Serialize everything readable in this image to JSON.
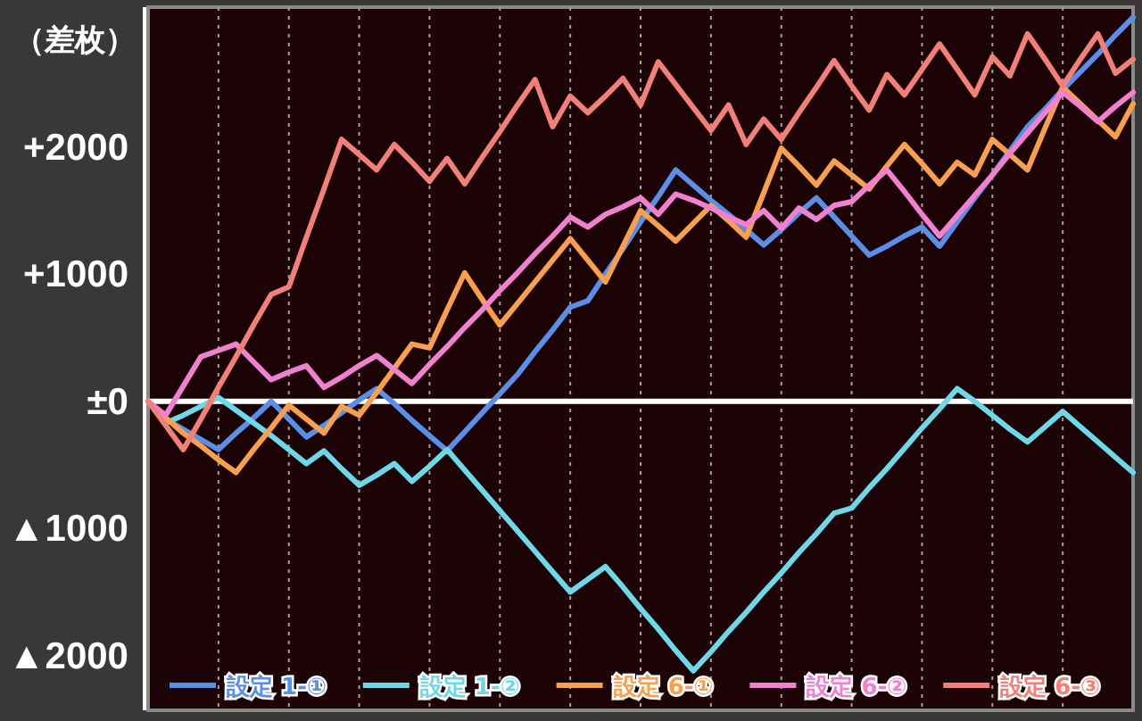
{
  "chart_data": {
    "type": "line",
    "ylabel": "（差枚）",
    "ylim": [
      -2430,
      3100
    ],
    "categories": [
      null,
      null,
      null,
      null,
      null,
      null,
      null,
      null,
      null,
      null,
      null,
      null,
      null,
      null,
      null,
      null,
      null,
      null,
      null,
      null,
      null,
      null,
      null,
      null,
      null,
      null,
      null,
      null,
      null,
      null,
      null,
      null,
      null,
      null,
      null,
      null,
      null,
      null,
      null,
      null,
      null,
      null,
      null,
      null,
      null,
      null,
      null,
      null,
      null,
      null,
      null,
      null,
      null,
      null,
      null,
      null,
      null
    ],
    "yticks": [
      {
        "value": 2000,
        "label": "+2000"
      },
      {
        "value": 1000,
        "label": "+1000"
      },
      {
        "value": 0,
        "label": "±0"
      },
      {
        "value": -1000,
        "label": "▲1000"
      },
      {
        "value": -2000,
        "label": "▲2000"
      }
    ],
    "tick_labels": "y",
    "grid": "x",
    "legend": "bottom",
    "marker": "none",
    "line_style": "solid",
    "ref_lines": [
      {
        "axis": "y",
        "value": 0,
        "color": "#ffffff"
      }
    ],
    "series": [
      {
        "name": "設定 1-①",
        "color": "#5b8ee6",
        "values": [
          0,
          -140,
          -220,
          -300,
          -380,
          -250,
          -130,
          0,
          -140,
          -280,
          -190,
          -90,
          10,
          100,
          -20,
          -150,
          -270,
          -390,
          -240,
          -90,
          60,
          210,
          390,
          560,
          740,
          790,
          1000,
          1200,
          1410,
          1610,
          1820,
          1700,
          1580,
          1470,
          1350,
          1230,
          1350,
          1480,
          1600,
          1450,
          1300,
          1150,
          1220,
          1300,
          1370,
          1220,
          1410,
          1600,
          1780,
          1970,
          2160,
          2300,
          2450,
          2590,
          2730,
          2880,
          3020
        ]
      },
      {
        "name": "設定 1-②",
        "color": "#6fd8e8",
        "values": [
          0,
          -170,
          -110,
          -40,
          30,
          -70,
          -170,
          -270,
          -380,
          -490,
          -390,
          -530,
          -660,
          -580,
          -490,
          -630,
          -510,
          -380,
          -540,
          -700,
          -860,
          -1020,
          -1180,
          -1340,
          -1500,
          -1400,
          -1300,
          -1460,
          -1630,
          -1790,
          -1960,
          -2120,
          -1970,
          -1810,
          -1660,
          -1500,
          -1350,
          -1190,
          -1040,
          -880,
          -840,
          -680,
          -530,
          -370,
          -210,
          -60,
          100,
          0,
          -110,
          -220,
          -320,
          -200,
          -80,
          -200,
          -320,
          -440,
          -560
        ]
      },
      {
        "name": "設定 6-①",
        "color": "#f8a050",
        "values": [
          0,
          -130,
          -250,
          -350,
          -460,
          -560,
          -380,
          -210,
          -30,
          -140,
          -250,
          -40,
          -110,
          70,
          260,
          450,
          420,
          720,
          1010,
          800,
          600,
          770,
          940,
          1110,
          1280,
          1110,
          940,
          1220,
          1500,
          1380,
          1260,
          1400,
          1540,
          1420,
          1290,
          1640,
          1990,
          1850,
          1700,
          1890,
          1780,
          1670,
          1850,
          2020,
          1870,
          1710,
          1880,
          1780,
          2060,
          1940,
          1820,
          2150,
          2470,
          2340,
          2210,
          2080,
          2340
        ]
      },
      {
        "name": "設定 6-②",
        "color": "#f080d0",
        "values": [
          0,
          -110,
          120,
          350,
          400,
          450,
          310,
          170,
          230,
          280,
          110,
          190,
          280,
          360,
          250,
          140,
          290,
          430,
          580,
          720,
          870,
          1010,
          1160,
          1300,
          1450,
          1370,
          1470,
          1530,
          1600,
          1470,
          1630,
          1580,
          1520,
          1450,
          1390,
          1500,
          1360,
          1520,
          1430,
          1540,
          1570,
          1700,
          1820,
          1650,
          1470,
          1300,
          1460,
          1620,
          1780,
          1950,
          2110,
          2270,
          2430,
          2320,
          2200,
          2320,
          2430
        ]
      },
      {
        "name": "設定 6-③",
        "color": "#f08078",
        "values": [
          0,
          -190,
          -380,
          -140,
          110,
          350,
          600,
          840,
          900,
          1290,
          1670,
          2060,
          1940,
          1820,
          2020,
          1880,
          1730,
          1910,
          1710,
          1920,
          2120,
          2330,
          2530,
          2160,
          2400,
          2270,
          2400,
          2540,
          2330,
          2670,
          2490,
          2310,
          2130,
          2330,
          2020,
          2220,
          2060,
          2270,
          2470,
          2680,
          2480,
          2290,
          2570,
          2410,
          2610,
          2810,
          2610,
          2410,
          2710,
          2560,
          2890,
          2690,
          2480,
          2690,
          2890,
          2580,
          2690
        ]
      }
    ]
  }
}
